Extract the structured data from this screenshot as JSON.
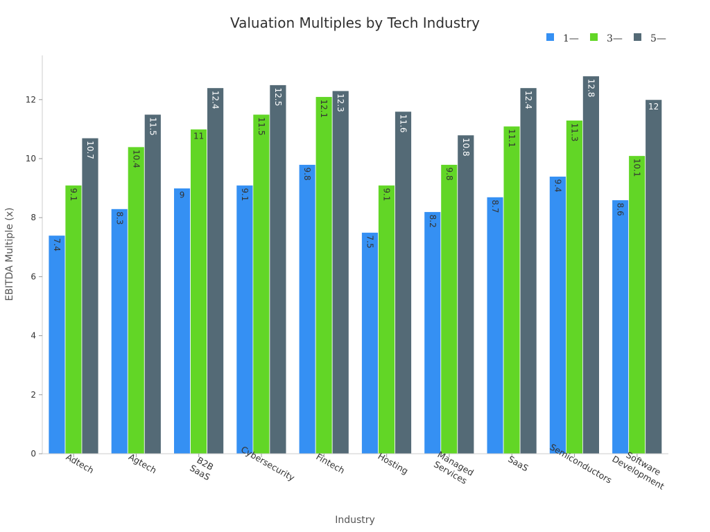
{
  "chart_data": {
    "type": "bar",
    "title": "Valuation Multiples by Tech Industry",
    "xlabel": "Industry",
    "ylabel": "EBITDA Multiple (x)",
    "ylim": [
      0,
      13.5
    ],
    "yticks": [
      0,
      2,
      4,
      6,
      8,
      10,
      12
    ],
    "grid": false,
    "legend_position": "top-right",
    "categories": [
      "Adtech",
      "Agtech",
      "B2B\nSaaS",
      "Cybersecurity",
      "Fintech",
      "Hosting",
      "Managed\nServices",
      "SaaS",
      "Semiconductors",
      "Software\nDevelopment"
    ],
    "series": [
      {
        "name": "1—",
        "color": "#3590f3",
        "label_color": "#333333",
        "values": [
          7.4,
          8.3,
          9,
          9.1,
          9.8,
          7.5,
          8.2,
          8.7,
          9.4,
          8.6
        ]
      },
      {
        "name": "3—",
        "color": "#62d626",
        "label_color": "#333333",
        "values": [
          9.1,
          10.4,
          11,
          11.5,
          12.1,
          9.1,
          9.8,
          11.1,
          11.3,
          10.1
        ]
      },
      {
        "name": "5—",
        "color": "#546a76",
        "label_color": "#ffffff",
        "values": [
          10.7,
          11.5,
          12.4,
          12.5,
          12.3,
          11.6,
          10.8,
          12.4,
          12.8,
          12
        ]
      }
    ]
  }
}
